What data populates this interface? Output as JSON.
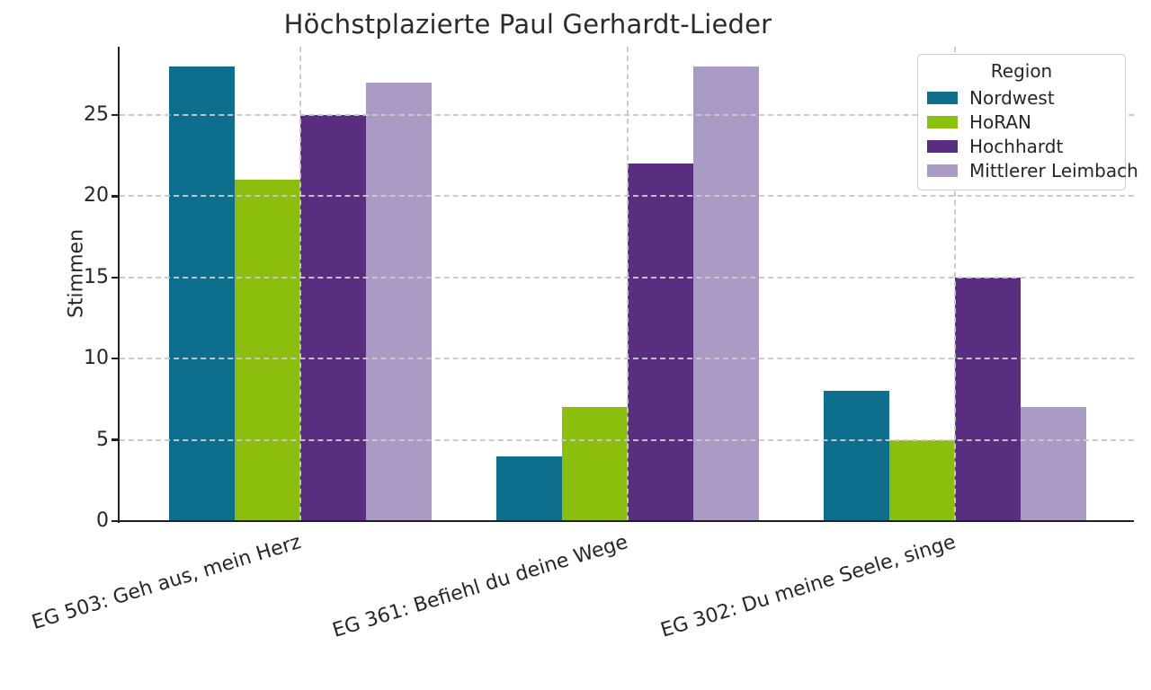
{
  "chart_data": {
    "type": "bar",
    "title": "Höchstplazierte Paul Gerhardt-Lieder",
    "ylabel": "Stimmen",
    "xlabel": "",
    "categories": [
      "EG 503: Geh aus, mein Herz",
      "EG 361: Befiehl du deine Wege",
      "EG 302: Du meine Seele, singe"
    ],
    "series": [
      {
        "name": "Nordwest",
        "color": "#0d6f8d",
        "values": [
          28,
          4,
          8
        ]
      },
      {
        "name": "HoRAN",
        "color": "#8cbf0d",
        "values": [
          21,
          7,
          5
        ]
      },
      {
        "name": "Hochhardt",
        "color": "#592e80",
        "values": [
          25,
          22,
          15
        ]
      },
      {
        "name": "Mittlerer Leimbach",
        "color": "#a99bc3",
        "values": [
          27,
          28,
          7
        ]
      }
    ],
    "yticks": [
      0,
      5,
      10,
      15,
      20,
      25
    ],
    "ylim": [
      0,
      29.2
    ],
    "grid": {
      "style": "dashed",
      "axes": "both"
    },
    "legend": {
      "title": "Region",
      "position": "upper-right"
    },
    "colors": {
      "text": "#262626",
      "spine": "#1f1f1f",
      "grid": "#c9c9c9",
      "background": "#ffffff"
    }
  }
}
